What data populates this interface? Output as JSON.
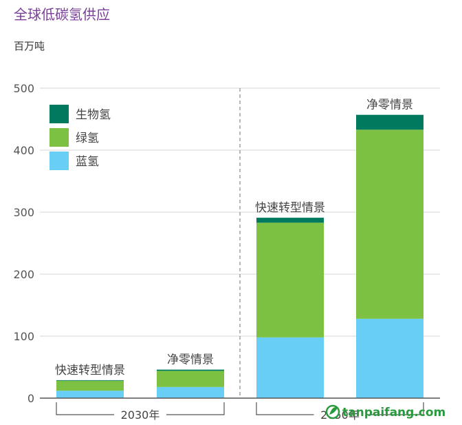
{
  "chart_data": {
    "type": "bar",
    "stacked": true,
    "title": "全球低碳氢供应",
    "ylabel": "百万吨",
    "ylim": [
      0,
      500
    ],
    "yticks": [
      0,
      100,
      200,
      300,
      400,
      500
    ],
    "grid": true,
    "legend_position": "top-left",
    "groups": [
      {
        "label": "2030年",
        "categories": [
          "快速转型情景",
          "净零情景"
        ]
      },
      {
        "label": "2050年",
        "categories": [
          "快速转型情景",
          "净零情景"
        ]
      }
    ],
    "categories": [
      "快速转型情景",
      "净零情景",
      "快速转型情景",
      "净零情景"
    ],
    "series": [
      {
        "name": "蓝氢",
        "color": "#69cef5",
        "values": [
          12,
          18,
          98,
          128
        ]
      },
      {
        "name": "绿氢",
        "color": "#7dc142",
        "values": [
          16,
          26,
          185,
          305
        ]
      },
      {
        "name": "生物氢",
        "color": "#007a5e",
        "values": [
          1,
          2,
          8,
          24
        ]
      }
    ],
    "legend_order": [
      "生物氢",
      "绿氢",
      "蓝氢"
    ]
  },
  "watermark": {
    "text": "tanpaifang.com"
  }
}
